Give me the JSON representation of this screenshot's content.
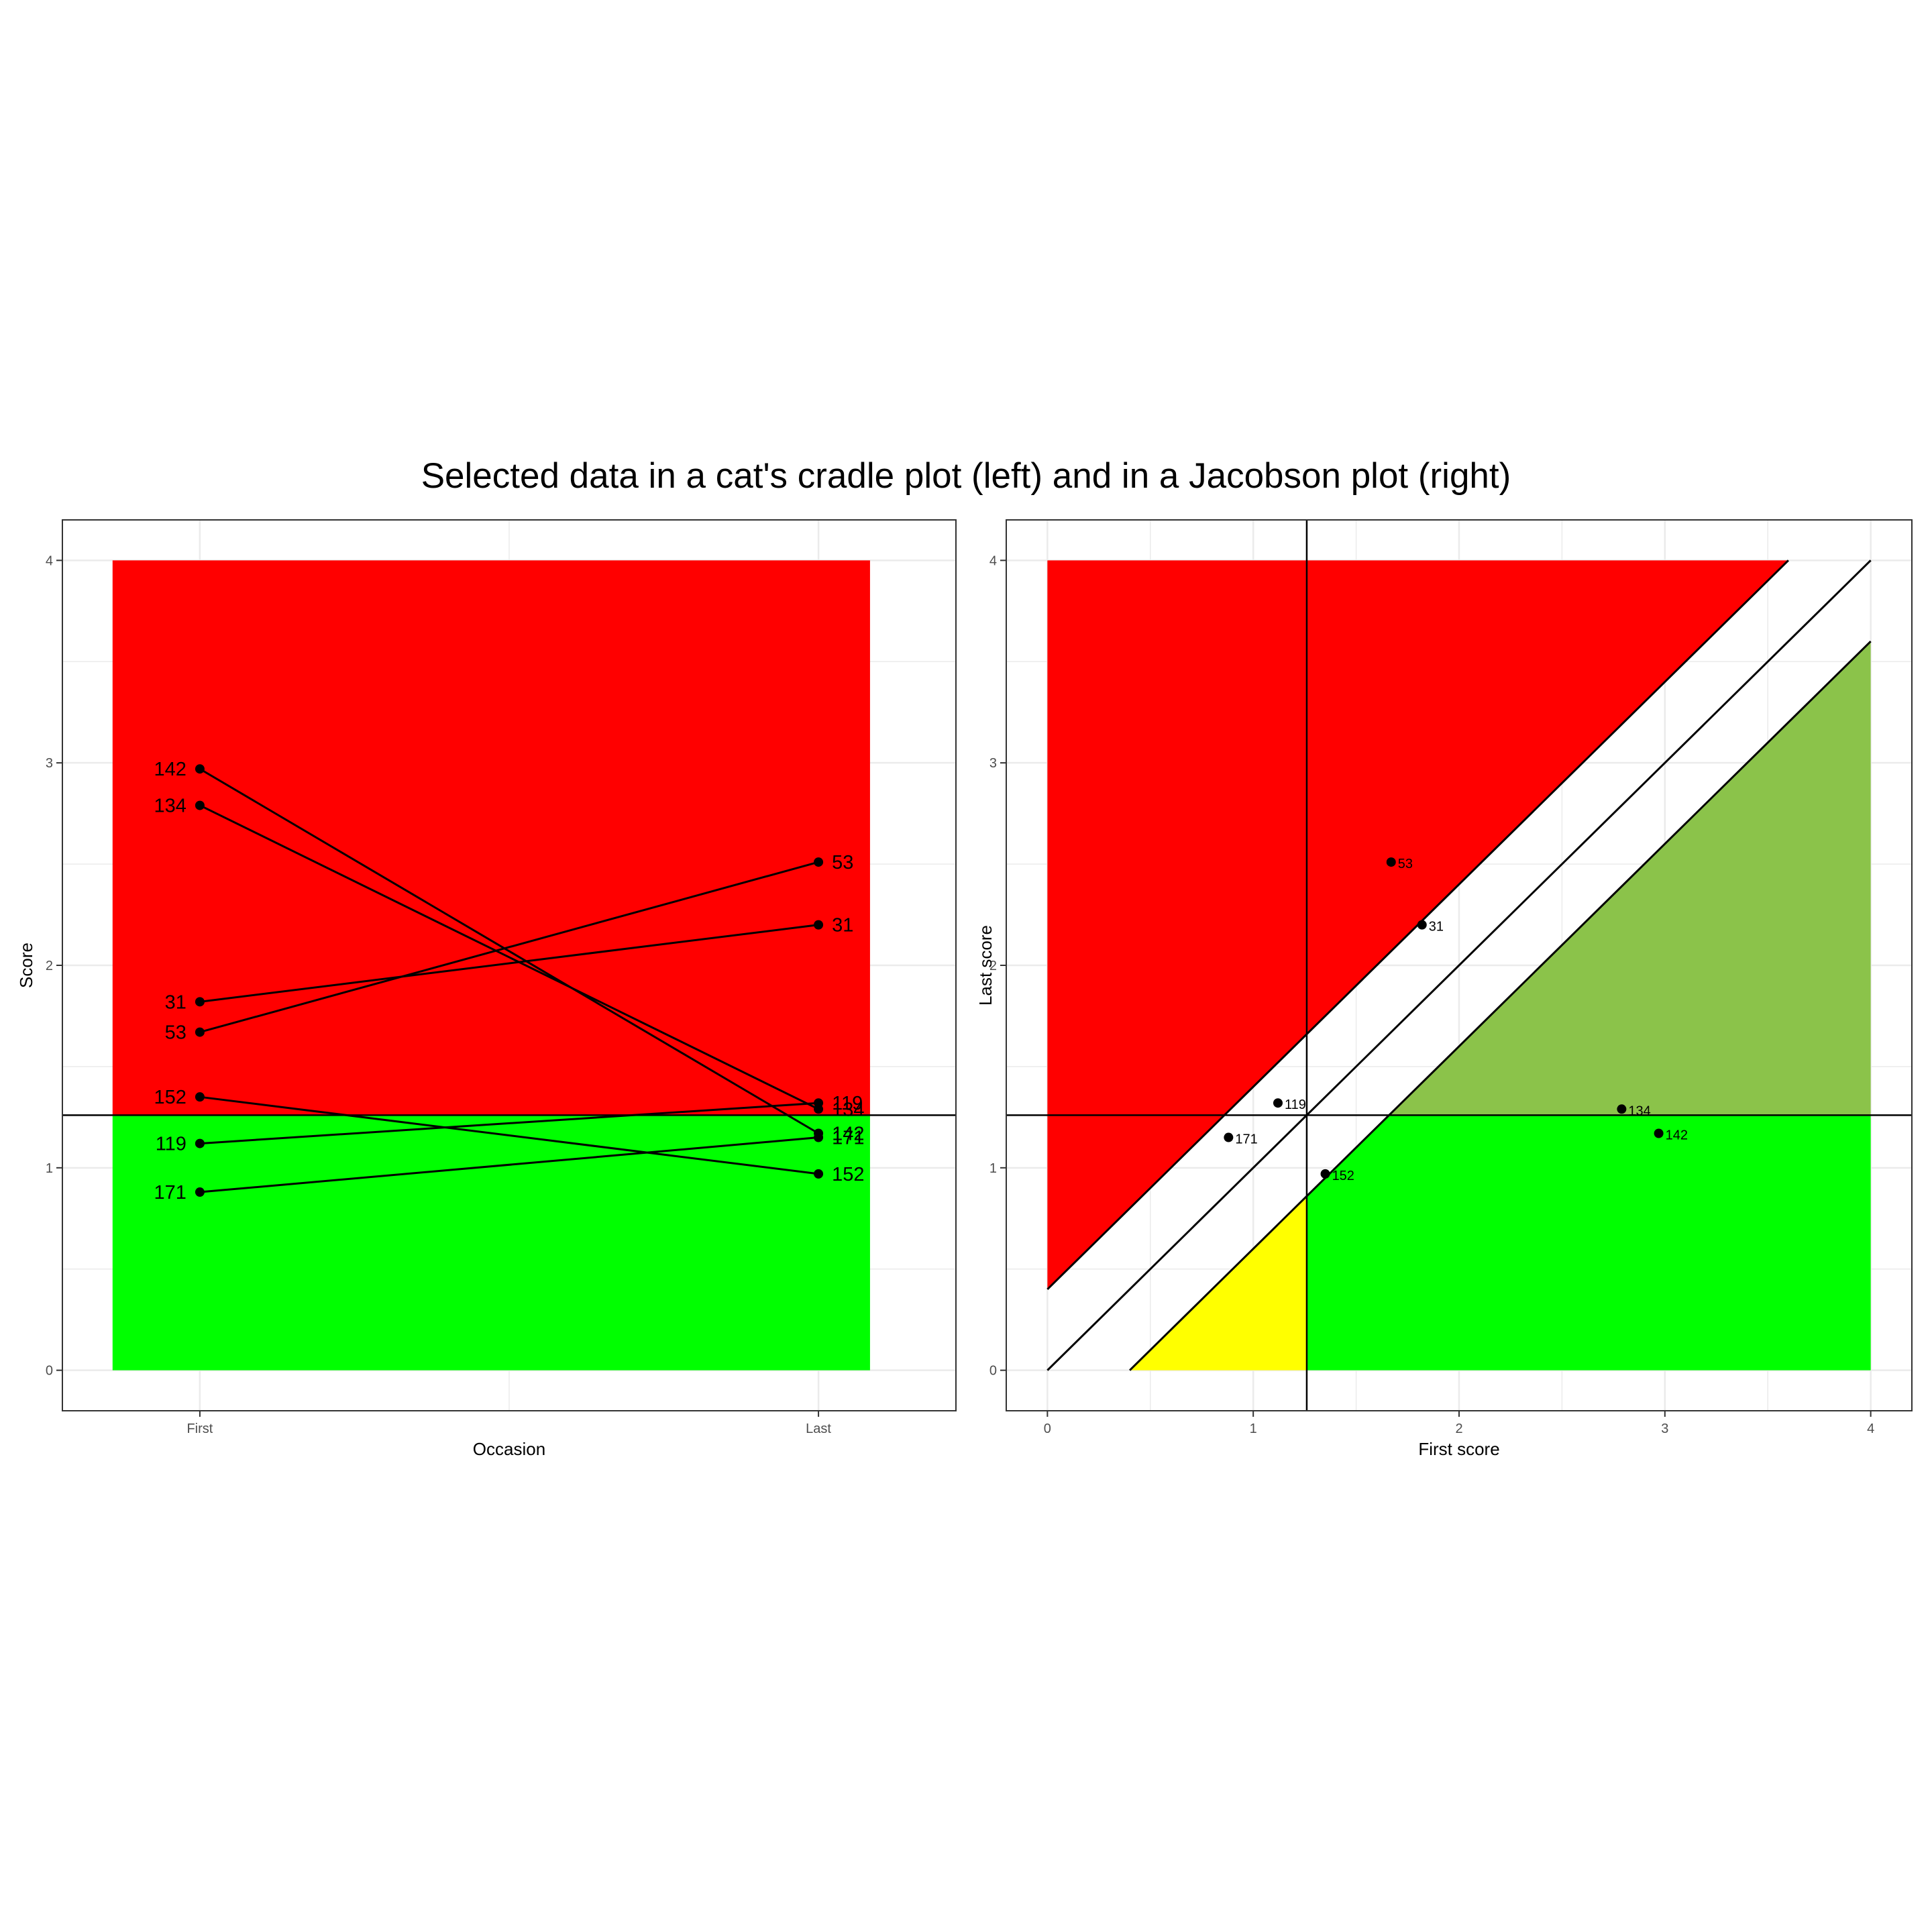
{
  "title": "Selected data in a cat's cradle plot (left) and in a Jacobson plot (right)",
  "colors": {
    "red_zone": "#ff0000",
    "green_zone": "#00ff00",
    "yellow_zone": "#ffff00",
    "olive_zone": "#8bc34a",
    "grid": "#ebebeb",
    "ink": "#000000",
    "tick_label": "#4d4d4d"
  },
  "chart_data": [
    {
      "type": "line",
      "title": "",
      "xlabel": "Occasion",
      "ylabel": "Score",
      "categories": [
        "First",
        "Last"
      ],
      "ylim": [
        -0.2,
        4.2
      ],
      "yticks": [
        0,
        1,
        2,
        3,
        4
      ],
      "cutoff": 1.26,
      "score_range": [
        0,
        4
      ],
      "grid": true,
      "zones": [
        {
          "name": "above cutoff",
          "color": "red_zone",
          "from": 1.26,
          "to": 4
        },
        {
          "name": "below cutoff",
          "color": "green_zone",
          "from": 0,
          "to": 1.26
        }
      ],
      "series": [
        {
          "name": "142",
          "values": [
            2.97,
            1.17
          ]
        },
        {
          "name": "134",
          "values": [
            2.79,
            1.29
          ]
        },
        {
          "name": "31",
          "values": [
            1.82,
            2.2
          ]
        },
        {
          "name": "53",
          "values": [
            1.67,
            2.51
          ]
        },
        {
          "name": "152",
          "values": [
            1.35,
            0.97
          ]
        },
        {
          "name": "119",
          "values": [
            1.12,
            1.32
          ]
        },
        {
          "name": "171",
          "values": [
            0.88,
            1.15
          ]
        }
      ]
    },
    {
      "type": "scatter",
      "title": "",
      "xlabel": "First score",
      "ylabel": "Last score",
      "xlim": [
        -0.2,
        4.2
      ],
      "ylim": [
        -0.2,
        4.2
      ],
      "xticks": [
        0,
        1,
        2,
        3,
        4
      ],
      "yticks": [
        0,
        1,
        2,
        3,
        4
      ],
      "cutoff": 1.26,
      "rci_band": 0.4,
      "score_range": [
        0,
        4
      ],
      "grid": true,
      "points": [
        {
          "label": "53",
          "x": 1.67,
          "y": 2.51
        },
        {
          "label": "31",
          "x": 1.82,
          "y": 2.2
        },
        {
          "label": "119",
          "x": 1.12,
          "y": 1.32
        },
        {
          "label": "171",
          "x": 0.88,
          "y": 1.15
        },
        {
          "label": "152",
          "x": 1.35,
          "y": 0.97
        },
        {
          "label": "134",
          "x": 2.79,
          "y": 1.29
        },
        {
          "label": "142",
          "x": 2.97,
          "y": 1.17
        }
      ]
    }
  ]
}
